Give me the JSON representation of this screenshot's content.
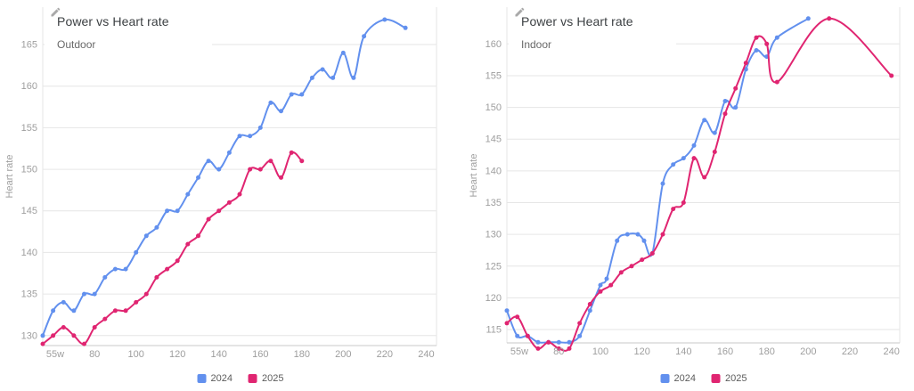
{
  "y_axis_title": "Heart rate",
  "colors": {
    "series_2024": "#6290ee",
    "series_2025": "#e02571",
    "grid": "#e6e6e6",
    "axis_line": "#c9c9c9",
    "tick_label": "#9e9e9e",
    "title_text": "#3c4043",
    "subtitle_text": "#696969"
  },
  "chart_data": [
    {
      "type": "line",
      "title": "Power vs Heart rate",
      "subtitle": "Outdoor",
      "xlabel": "",
      "ylabel": "Heart rate",
      "x_unit": "w",
      "x_ticks": {
        "values": [
          55,
          80,
          100,
          120,
          140,
          160,
          180,
          200,
          220,
          240
        ],
        "labels": [
          "55w",
          "80",
          "100",
          "120",
          "140",
          "160",
          "180",
          "200",
          "220",
          "240"
        ]
      },
      "y_ticks": [
        130,
        135,
        140,
        145,
        150,
        155,
        160,
        165
      ],
      "xlim": [
        55,
        245
      ],
      "ylim": [
        128.8,
        169.5
      ],
      "grid": true,
      "legend_position": "bottom",
      "series": [
        {
          "name": "2024",
          "color": "#6290ee",
          "points": [
            [
              55,
              130
            ],
            [
              60,
              133
            ],
            [
              65,
              134
            ],
            [
              70,
              133
            ],
            [
              75,
              135
            ],
            [
              80,
              135
            ],
            [
              85,
              137
            ],
            [
              90,
              138
            ],
            [
              95,
              138
            ],
            [
              100,
              140
            ],
            [
              105,
              142
            ],
            [
              110,
              143
            ],
            [
              115,
              145
            ],
            [
              120,
              145
            ],
            [
              125,
              147
            ],
            [
              130,
              149
            ],
            [
              135,
              151
            ],
            [
              140,
              150
            ],
            [
              145,
              152
            ],
            [
              150,
              154
            ],
            [
              155,
              154
            ],
            [
              160,
              155
            ],
            [
              165,
              158
            ],
            [
              170,
              157
            ],
            [
              175,
              159
            ],
            [
              180,
              159
            ],
            [
              185,
              161
            ],
            [
              190,
              162
            ],
            [
              195,
              161
            ],
            [
              200,
              164
            ],
            [
              205,
              161
            ],
            [
              210,
              166
            ],
            [
              220,
              168
            ],
            [
              230,
              167
            ]
          ]
        },
        {
          "name": "2025",
          "color": "#e02571",
          "points": [
            [
              55,
              129
            ],
            [
              60,
              130
            ],
            [
              65,
              131
            ],
            [
              70,
              130
            ],
            [
              75,
              129
            ],
            [
              80,
              131
            ],
            [
              85,
              132
            ],
            [
              90,
              133
            ],
            [
              95,
              133
            ],
            [
              100,
              134
            ],
            [
              105,
              135
            ],
            [
              110,
              137
            ],
            [
              115,
              138
            ],
            [
              120,
              139
            ],
            [
              125,
              141
            ],
            [
              130,
              142
            ],
            [
              135,
              144
            ],
            [
              140,
              145
            ],
            [
              145,
              146
            ],
            [
              150,
              147
            ],
            [
              155,
              150
            ],
            [
              160,
              150
            ],
            [
              165,
              151
            ],
            [
              170,
              149
            ],
            [
              175,
              152
            ],
            [
              180,
              151
            ]
          ]
        }
      ]
    },
    {
      "type": "line",
      "title": "Power vs Heart rate",
      "subtitle": "Indoor",
      "xlabel": "",
      "ylabel": "Heart rate",
      "x_unit": "w",
      "x_ticks": {
        "values": [
          55,
          80,
          100,
          120,
          140,
          160,
          180,
          200,
          220,
          240
        ],
        "labels": [
          "55w",
          "80",
          "100",
          "120",
          "140",
          "160",
          "180",
          "200",
          "220",
          "240"
        ]
      },
      "y_ticks": [
        115,
        120,
        125,
        130,
        135,
        140,
        145,
        150,
        155,
        160
      ],
      "xlim": [
        55,
        244
      ],
      "ylim": [
        112.9,
        165.8
      ],
      "grid": true,
      "legend_position": "bottom",
      "series": [
        {
          "name": "2024",
          "color": "#6290ee",
          "points": [
            [
              55,
              118
            ],
            [
              60,
              114
            ],
            [
              65,
              114
            ],
            [
              70,
              113
            ],
            [
              75,
              113
            ],
            [
              80,
              113
            ],
            [
              85,
              113
            ],
            [
              90,
              114
            ],
            [
              95,
              118
            ],
            [
              100,
              122
            ],
            [
              103,
              123
            ],
            [
              108,
              129
            ],
            [
              113,
              130
            ],
            [
              118,
              130
            ],
            [
              121,
              129
            ],
            [
              125,
              127
            ],
            [
              130,
              138
            ],
            [
              135,
              141
            ],
            [
              140,
              142
            ],
            [
              145,
              144
            ],
            [
              150,
              148
            ],
            [
              155,
              146
            ],
            [
              160,
              151
            ],
            [
              165,
              150
            ],
            [
              170,
              156
            ],
            [
              175,
              159
            ],
            [
              180,
              158
            ],
            [
              185,
              161
            ],
            [
              200,
              164
            ]
          ]
        },
        {
          "name": "2025",
          "color": "#e02571",
          "points": [
            [
              55,
              116
            ],
            [
              60,
              117
            ],
            [
              65,
              114
            ],
            [
              70,
              112
            ],
            [
              75,
              113
            ],
            [
              80,
              112
            ],
            [
              85,
              112
            ],
            [
              90,
              116
            ],
            [
              95,
              119
            ],
            [
              100,
              121
            ],
            [
              105,
              122
            ],
            [
              110,
              124
            ],
            [
              115,
              125
            ],
            [
              120,
              126
            ],
            [
              125,
              127
            ],
            [
              130,
              130
            ],
            [
              135,
              134
            ],
            [
              140,
              135
            ],
            [
              145,
              142
            ],
            [
              150,
              139
            ],
            [
              155,
              143
            ],
            [
              160,
              149
            ],
            [
              165,
              153
            ],
            [
              170,
              157
            ],
            [
              175,
              161
            ],
            [
              180,
              160
            ],
            [
              185,
              154
            ],
            [
              210,
              164
            ],
            [
              240,
              155
            ]
          ]
        }
      ]
    }
  ]
}
